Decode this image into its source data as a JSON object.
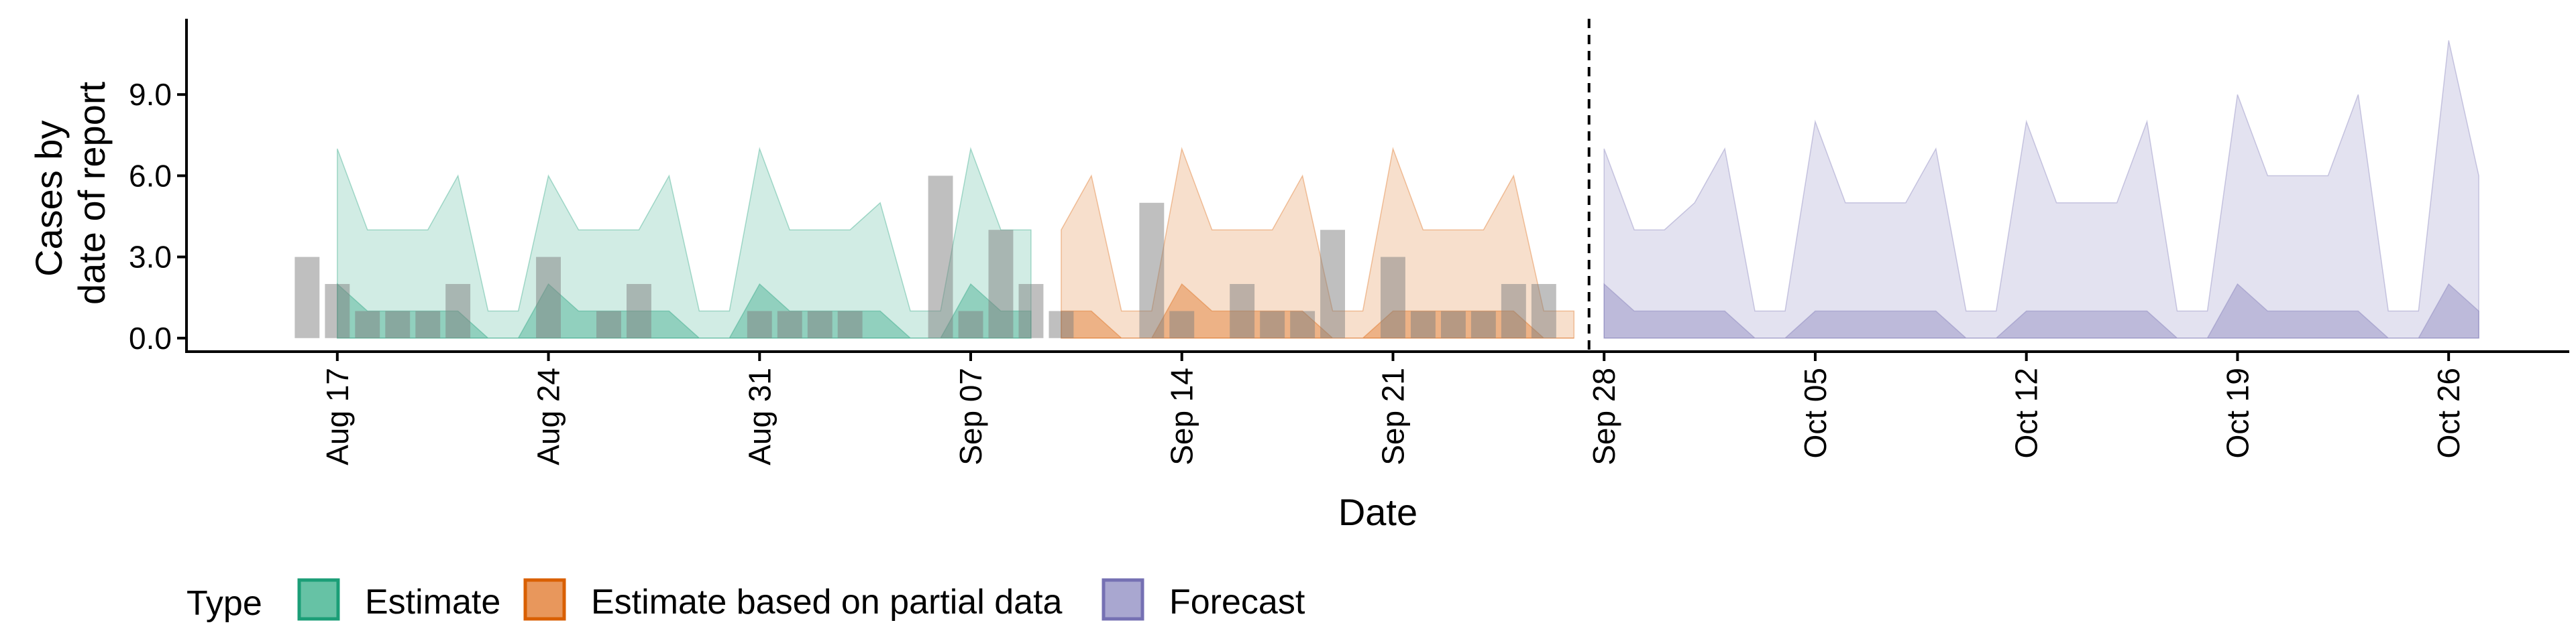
{
  "chart_data": {
    "type": "area",
    "xlabel": "Date",
    "ylabel_lines": [
      "Cases by",
      "date of report"
    ],
    "y_ticks": [
      0,
      3,
      6,
      9
    ],
    "y_tick_labels": [
      "0.0",
      "3.0",
      "6.0",
      "9.0"
    ],
    "ylim": [
      -0.5,
      11.8
    ],
    "xlim": [
      "2020-08-12",
      "2020-10-30"
    ],
    "x_ticks": [
      "2020-08-17",
      "2020-08-24",
      "2020-08-31",
      "2020-09-07",
      "2020-09-14",
      "2020-09-21",
      "2020-09-28",
      "2020-10-05",
      "2020-10-12",
      "2020-10-19",
      "2020-10-26"
    ],
    "x_tick_labels": [
      "Aug 17",
      "Aug 24",
      "Aug 31",
      "Sep 07",
      "Sep 14",
      "Sep 21",
      "Sep 28",
      "Oct 05",
      "Oct 12",
      "Oct 19",
      "Oct 26"
    ],
    "forecast_date": "2020-09-27",
    "legend": {
      "title": "Type",
      "position": "bottom",
      "items": [
        {
          "label": "Estimate",
          "fill": "#66c2a5",
          "stroke": "#1b9e77"
        },
        {
          "label": "Estimate based on partial data",
          "fill": "#e8975c",
          "stroke": "#d95f02"
        },
        {
          "label": "Forecast",
          "fill": "#a9a7d0",
          "stroke": "#7570b3"
        }
      ]
    },
    "series": [
      {
        "name": "Estimate",
        "fill": "#1b9e77",
        "stroke": "#1b9e77",
        "x": [
          "2020-08-17",
          "2020-08-18",
          "2020-08-19",
          "2020-08-20",
          "2020-08-21",
          "2020-08-22",
          "2020-08-23",
          "2020-08-24",
          "2020-08-25",
          "2020-08-26",
          "2020-08-27",
          "2020-08-28",
          "2020-08-29",
          "2020-08-30",
          "2020-08-31",
          "2020-09-01",
          "2020-09-02",
          "2020-09-03",
          "2020-09-04",
          "2020-09-05",
          "2020-09-06",
          "2020-09-07",
          "2020-09-08",
          "2020-09-09"
        ],
        "bands": [
          {
            "lower": [
              0,
              0,
              0,
              0,
              0,
              0,
              0,
              0,
              0,
              0,
              0,
              0,
              0,
              0,
              0,
              0,
              0,
              0,
              0,
              0,
              0,
              0,
              0,
              0
            ],
            "upper": [
              7,
              4,
              4,
              4,
              6,
              1,
              1,
              6,
              4,
              4,
              4,
              6,
              1,
              1,
              7,
              4,
              4,
              4,
              5,
              1,
              1,
              7,
              4,
              4
            ]
          },
          {
            "lower": [
              0,
              0,
              0,
              0,
              0,
              0,
              0,
              0,
              0,
              0,
              0,
              0,
              0,
              0,
              0,
              0,
              0,
              0,
              0,
              0,
              0,
              0,
              0,
              0
            ],
            "upper": [
              2,
              1,
              1,
              1,
              1,
              0,
              0,
              2,
              1,
              1,
              1,
              1,
              0,
              0,
              2,
              1,
              1,
              1,
              1,
              0,
              0,
              2,
              1,
              1
            ]
          }
        ]
      },
      {
        "name": "Estimate based on partial data",
        "fill": "#d95f02",
        "stroke": "#d95f02",
        "x": [
          "2020-09-10",
          "2020-09-11",
          "2020-09-12",
          "2020-09-13",
          "2020-09-14",
          "2020-09-15",
          "2020-09-16",
          "2020-09-17",
          "2020-09-18",
          "2020-09-19",
          "2020-09-20",
          "2020-09-21",
          "2020-09-22",
          "2020-09-23",
          "2020-09-24",
          "2020-09-25",
          "2020-09-26",
          "2020-09-27"
        ],
        "bands": [
          {
            "lower": [
              0,
              0,
              0,
              0,
              0,
              0,
              0,
              0,
              0,
              0,
              0,
              0,
              0,
              0,
              0,
              0,
              0,
              0
            ],
            "upper": [
              4,
              6,
              1,
              1,
              7,
              4,
              4,
              4,
              6,
              1,
              1,
              7,
              4,
              4,
              4,
              6,
              1,
              1
            ]
          },
          {
            "lower": [
              0,
              0,
              0,
              0,
              0,
              0,
              0,
              0,
              0,
              0,
              0,
              0,
              0,
              0,
              0,
              0,
              0,
              0
            ],
            "upper": [
              1,
              1,
              0,
              0,
              2,
              1,
              1,
              1,
              1,
              0,
              0,
              1,
              1,
              1,
              1,
              1,
              0,
              0
            ]
          }
        ]
      },
      {
        "name": "Forecast",
        "fill": "#7570b3",
        "stroke": "#7570b3",
        "x": [
          "2020-09-28",
          "2020-09-29",
          "2020-09-30",
          "2020-10-01",
          "2020-10-02",
          "2020-10-03",
          "2020-10-04",
          "2020-10-05",
          "2020-10-06",
          "2020-10-07",
          "2020-10-08",
          "2020-10-09",
          "2020-10-10",
          "2020-10-11",
          "2020-10-12",
          "2020-10-13",
          "2020-10-14",
          "2020-10-15",
          "2020-10-16",
          "2020-10-17",
          "2020-10-18",
          "2020-10-19",
          "2020-10-20",
          "2020-10-21",
          "2020-10-22",
          "2020-10-23",
          "2020-10-24",
          "2020-10-25",
          "2020-10-26",
          "2020-10-27"
        ],
        "bands": [
          {
            "lower": [
              0,
              0,
              0,
              0,
              0,
              0,
              0,
              0,
              0,
              0,
              0,
              0,
              0,
              0,
              0,
              0,
              0,
              0,
              0,
              0,
              0,
              0,
              0,
              0,
              0,
              0,
              0,
              0,
              0,
              0
            ],
            "upper": [
              7,
              4,
              4,
              5,
              7,
              1,
              1,
              8,
              5,
              5,
              5,
              7,
              1,
              1,
              8,
              5,
              5,
              5,
              8,
              1,
              1,
              9,
              6,
              6,
              6,
              9,
              1,
              1,
              11,
              6
            ]
          },
          {
            "lower": [
              0,
              0,
              0,
              0,
              0,
              0,
              0,
              0,
              0,
              0,
              0,
              0,
              0,
              0,
              0,
              0,
              0,
              0,
              0,
              0,
              0,
              0,
              0,
              0,
              0,
              0,
              0,
              0,
              0,
              0
            ],
            "upper": [
              2,
              1,
              1,
              1,
              1,
              0,
              0,
              1,
              1,
              1,
              1,
              1,
              0,
              0,
              1,
              1,
              1,
              1,
              1,
              0,
              0,
              2,
              1,
              1,
              1,
              1,
              0,
              0,
              2,
              1
            ]
          }
        ]
      }
    ],
    "reported_cases": {
      "x": [
        "2020-08-16",
        "2020-08-17",
        "2020-08-18",
        "2020-08-19",
        "2020-08-20",
        "2020-08-21",
        "2020-08-24",
        "2020-08-26",
        "2020-08-27",
        "2020-08-31",
        "2020-09-01",
        "2020-09-02",
        "2020-09-03",
        "2020-09-06",
        "2020-09-07",
        "2020-09-08",
        "2020-09-09",
        "2020-09-10",
        "2020-09-13",
        "2020-09-14",
        "2020-09-16",
        "2020-09-17",
        "2020-09-18",
        "2020-09-19",
        "2020-09-21",
        "2020-09-22",
        "2020-09-23",
        "2020-09-24",
        "2020-09-25",
        "2020-09-26"
      ],
      "values": [
        3,
        2,
        1,
        1,
        1,
        2,
        3,
        1,
        2,
        1,
        1,
        1,
        1,
        6,
        1,
        4,
        2,
        1,
        5,
        1,
        2,
        1,
        1,
        4,
        3,
        1,
        1,
        1,
        2,
        2
      ],
      "fill": "#808080"
    }
  }
}
